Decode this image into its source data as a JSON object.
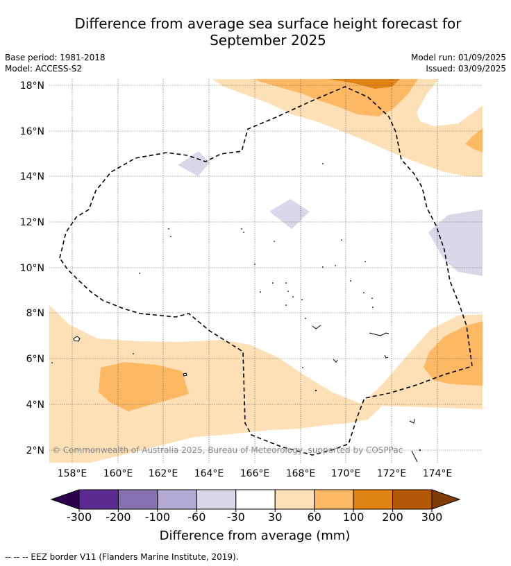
{
  "title_line1": "Difference from average sea surface height forecast for",
  "title_line2": "September 2025",
  "base_period": "Base period: 1981-2018",
  "model": "Model: ACCESS-S2",
  "model_run": "Model run: 01/09/2025",
  "issued": "Issued: 03/09/2025",
  "copyright": "© Commonwealth of Australia 2025, Bureau of Meteorology, supported by COSPPac",
  "footnote": "-- -- -- EEZ border V11 (Flanders Marine Institute, 2019).",
  "lat_labels": [
    "18°N",
    "16°N",
    "14°N",
    "12°N",
    "10°N",
    "8°N",
    "6°N",
    "4°N",
    "2°N"
  ],
  "lon_labels": [
    "158°E",
    "160°E",
    "162°E",
    "164°E",
    "166°E",
    "168°E",
    "170°E",
    "172°E",
    "174°E"
  ],
  "colorbar": {
    "title": "Difference from average (mm)",
    "ticks": [
      "-300",
      "-200",
      "-100",
      "-60",
      "-30",
      "30",
      "60",
      "100",
      "200",
      "300"
    ],
    "colors": [
      "#2d004b",
      "#5c2a91",
      "#8473b0",
      "#b2aad4",
      "#d8d8ea",
      "#ffffff",
      "#fee0b6",
      "#fdb863",
      "#e08214",
      "#b35806",
      "#7f3b08"
    ]
  },
  "chart_data": {
    "type": "heatmap",
    "title": "Difference from average sea surface height forecast for September 2025",
    "xlabel": "",
    "ylabel": "",
    "x_range_deg_e": [
      157,
      176
    ],
    "y_range_deg_n": [
      1.4,
      18.3
    ],
    "grid": true,
    "levels_mm": [
      -300,
      -200,
      -100,
      -60,
      -30,
      30,
      60,
      100,
      200,
      300
    ],
    "legend": "bottom"
  }
}
